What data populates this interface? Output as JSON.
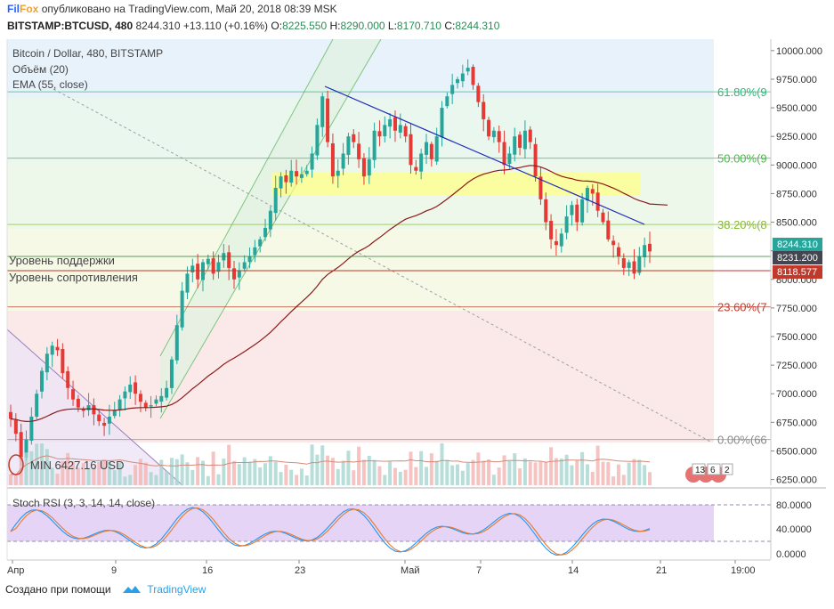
{
  "header": {
    "brand_part1": "Fil",
    "brand_part2": "Fox",
    "published": "опубликовано на TradingView.com, Май 20, 2018 08:39 MSK",
    "symbol": "BITSTAMP:BTCUSD, 480",
    "price": "8244.310",
    "change": "+13.110 (+0.16%)",
    "o_label": "O:",
    "o_value": "8225.550",
    "h_label": "H:",
    "h_value": "8290.000",
    "l_label": "L:",
    "l_value": "8170.710",
    "c_label": "C:",
    "c_value": "8244.310"
  },
  "legend": {
    "title": "Bitcoin / Dollar, 480, BITSTAMP",
    "volume": "Объём (20)",
    "ema": "EMA (55, close)",
    "rsi": "Stoch RSI (3, 3, 14, 14, close)"
  },
  "footer": {
    "created": "Создано при помощи",
    "tradingview": "TradingView"
  },
  "colors": {
    "up": "#26a69a",
    "down": "#e53935",
    "ema": "#8b1a1a",
    "trend": "#1e2bb8",
    "support": "#2e7d32",
    "resistance": "#c0392b",
    "fib_618": "#2eb87a",
    "fib_50": "#48b84a",
    "fib_382": "#86b83a",
    "fib_236": "#c0392b",
    "fib_0": "#888888"
  },
  "chart_data": {
    "type": "candlestick",
    "title": "Bitcoin / Dollar, 480, BITSTAMP",
    "ylim": [
      6200,
      10100
    ],
    "y_ticks": [
      "10000.000",
      "9750.000",
      "9500.000",
      "9250.000",
      "9000.000",
      "8750.000",
      "8500.000",
      "8250.000",
      "8000.000",
      "7750.000",
      "7500.000",
      "7250.000",
      "7000.000",
      "6750.000",
      "6500.000",
      "6250.000"
    ],
    "x_ticks": [
      "Апр",
      "9",
      "16",
      "23",
      "Май",
      "7",
      "14",
      "21",
      "19:00"
    ],
    "price_labels": {
      "last": "8244.310",
      "current": "8231.200",
      "resistance": "8118.577"
    },
    "fib_levels": [
      {
        "label": "61.80%(9",
        "value": 9640
      },
      {
        "label": "50.00%(9",
        "value": 9060
      },
      {
        "label": "38.20%(8",
        "value": 8480
      },
      {
        "label": "23.60%(7",
        "value": 7760
      },
      {
        "label": "0.00%(66",
        "value": 6600
      }
    ],
    "annotations": {
      "support_label": "Уровень поддержки",
      "resistance_label": "Уровень сопротивления",
      "min_label": "MIN 6427.16 USD",
      "support_value": 8250,
      "resistance_value": 8118
    },
    "event_badges": [
      "13",
      "6",
      "2"
    ],
    "closes": [
      6780,
      6650,
      6430,
      6600,
      6800,
      7000,
      7200,
      7350,
      7420,
      7380,
      7180,
      7050,
      6950,
      6880,
      6850,
      6900,
      6820,
      6760,
      6720,
      6800,
      6860,
      6950,
      7020,
      7080,
      7000,
      6930,
      6880,
      6900,
      6950,
      6980,
      7050,
      7300,
      7600,
      7900,
      8050,
      8120,
      8000,
      8150,
      8180,
      8050,
      8150,
      8230,
      8100,
      8000,
      8080,
      8150,
      8200,
      8280,
      8350,
      8450,
      8600,
      8800,
      8900,
      8850,
      8950,
      8900,
      8920,
      8950,
      9100,
      9350,
      9600,
      9200,
      8900,
      8950,
      9100,
      9250,
      9200,
      9050,
      8900,
      9050,
      9300,
      9250,
      9350,
      9400,
      9300,
      9350,
      9250,
      9000,
      8950,
      9100,
      9200,
      9050,
      9250,
      9500,
      9600,
      9700,
      9750,
      9800,
      9850,
      9700,
      9550,
      9400,
      9250,
      9300,
      9200,
      9000,
      9100,
      9250,
      9150,
      9300,
      9200,
      8900,
      8700,
      8500,
      8350,
      8300,
      8400,
      8550,
      8650,
      8500,
      8700,
      8800,
      8750,
      8600,
      8500,
      8350,
      8300,
      8200,
      8100,
      8150,
      8050,
      8200,
      8300,
      8244
    ],
    "rsi": {
      "ylim": [
        0,
        100
      ],
      "y_ticks": [
        "80.0000",
        "40.0000",
        "0.0000"
      ],
      "band": [
        20,
        80
      ]
    }
  }
}
